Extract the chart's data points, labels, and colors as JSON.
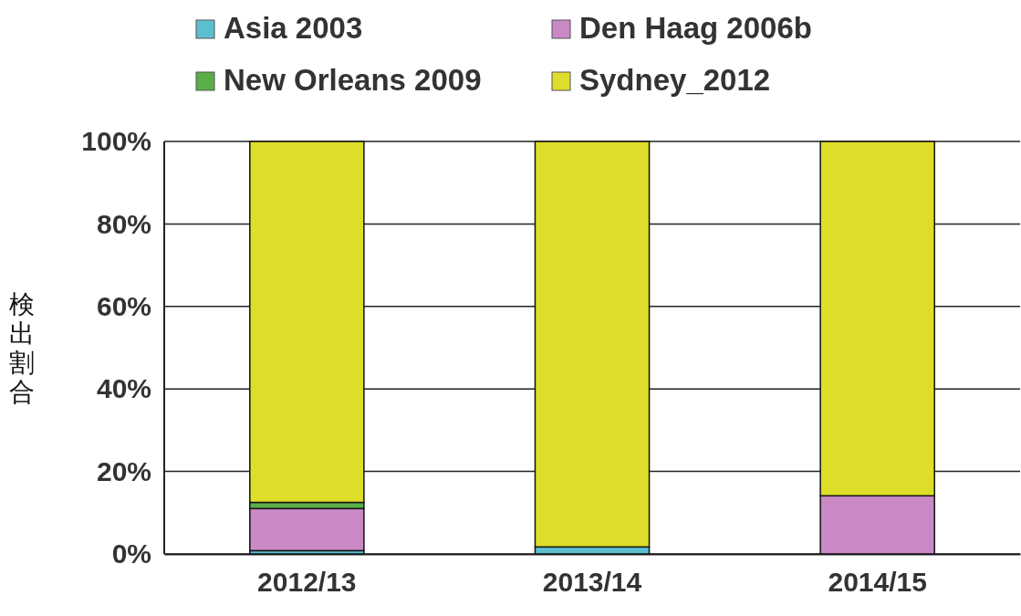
{
  "chart_data": {
    "type": "bar",
    "stacked": true,
    "ylabel": "検出割合",
    "categories": [
      "2012/13",
      "2013/14",
      "2014/15"
    ],
    "series": [
      {
        "name": "Asia 2003",
        "color": "#5bbfd0",
        "values": [
          0.8,
          1.7,
          0
        ]
      },
      {
        "name": "Den Haag 2006b",
        "color": "#c889c4",
        "values": [
          10.2,
          0,
          14.1
        ]
      },
      {
        "name": "New Orleans 2009",
        "color": "#5aae48",
        "values": [
          1.5,
          0,
          0
        ]
      },
      {
        "name": "Sydney_2012",
        "color": "#dede2a",
        "values": [
          87.5,
          98.3,
          85.9
        ]
      }
    ],
    "ylim": [
      0,
      100
    ],
    "yticks": [
      {
        "value": 0,
        "label": "0%"
      },
      {
        "value": 20,
        "label": "20%"
      },
      {
        "value": 40,
        "label": "40%"
      },
      {
        "value": 60,
        "label": "60%"
      },
      {
        "value": 80,
        "label": "80%"
      },
      {
        "value": 100,
        "label": "100%"
      }
    ],
    "grid": "y",
    "legend": "top"
  }
}
